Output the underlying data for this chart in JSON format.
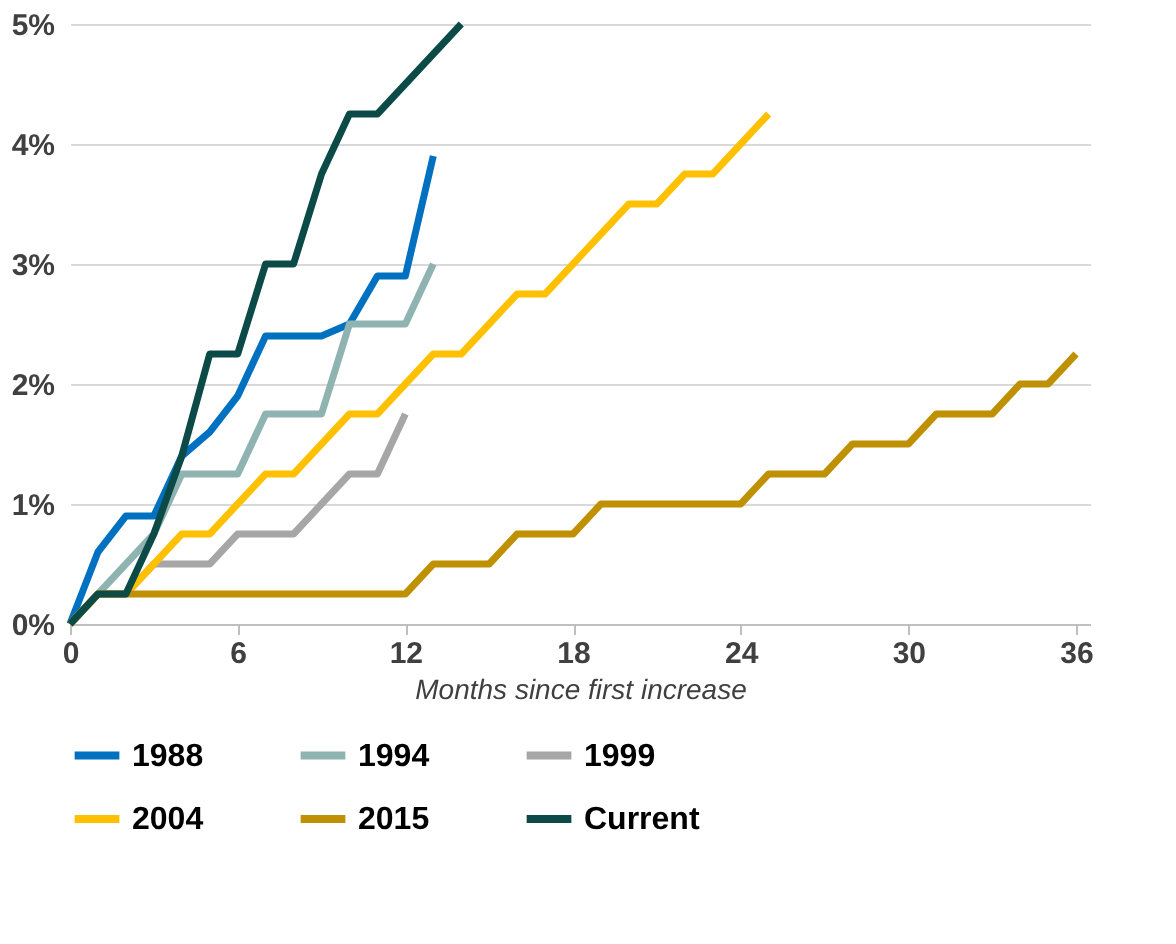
{
  "chart_data": {
    "type": "line",
    "xlabel": "Months since first increase",
    "xlim": [
      0,
      36.5
    ],
    "xticks": [
      0,
      6,
      12,
      18,
      24,
      30,
      36
    ],
    "ylim": [
      0,
      5
    ],
    "yticks": [
      {
        "value": 0,
        "label": "0%"
      },
      {
        "value": 1,
        "label": "1%"
      },
      {
        "value": 2,
        "label": "2%"
      },
      {
        "value": 3,
        "label": "3%"
      },
      {
        "value": 4,
        "label": "4%"
      },
      {
        "value": 5,
        "label": "5%"
      }
    ],
    "grid": "y",
    "legend": "bottom",
    "line_style": "solid",
    "marker": "none",
    "series": [
      {
        "name": "1988",
        "color": "#0070c0",
        "x": [
          0,
          1,
          2,
          3,
          4,
          5,
          6,
          7,
          8,
          9,
          10,
          11,
          12,
          13
        ],
        "values": [
          0,
          0.6,
          0.9,
          0.9,
          1.4,
          1.6,
          1.9,
          2.4,
          2.4,
          2.4,
          2.5,
          2.9,
          2.9,
          3.9
        ]
      },
      {
        "name": "1994",
        "color": "#8fb3b0",
        "x": [
          0,
          1,
          2,
          3,
          4,
          5,
          6,
          7,
          8,
          9,
          10,
          11,
          12,
          13
        ],
        "values": [
          0,
          0.25,
          0.5,
          0.75,
          1.25,
          1.25,
          1.25,
          1.75,
          1.75,
          1.75,
          2.5,
          2.5,
          2.5,
          3.0
        ]
      },
      {
        "name": "1999",
        "color": "#a6a6a6",
        "x": [
          0,
          1,
          2,
          3,
          4,
          5,
          6,
          7,
          8,
          9,
          10,
          11,
          12
        ],
        "values": [
          0,
          0.25,
          0.25,
          0.5,
          0.5,
          0.5,
          0.75,
          0.75,
          0.75,
          1.0,
          1.25,
          1.25,
          1.75
        ]
      },
      {
        "name": "2004",
        "color": "#ffc000",
        "x": [
          0,
          1,
          2,
          3,
          4,
          5,
          6,
          7,
          8,
          9,
          10,
          11,
          12,
          13,
          14,
          15,
          16,
          17,
          18,
          19,
          20,
          21,
          22,
          23,
          24,
          25
        ],
        "values": [
          0,
          0.25,
          0.25,
          0.5,
          0.75,
          0.75,
          1.0,
          1.25,
          1.25,
          1.5,
          1.75,
          1.75,
          2.0,
          2.25,
          2.25,
          2.5,
          2.75,
          2.75,
          3.0,
          3.25,
          3.5,
          3.5,
          3.75,
          3.75,
          4.0,
          4.25
        ]
      },
      {
        "name": "2015",
        "color": "#bf9000",
        "x": [
          0,
          1,
          2,
          3,
          4,
          5,
          6,
          7,
          8,
          9,
          10,
          11,
          12,
          13,
          14,
          15,
          16,
          17,
          18,
          19,
          20,
          21,
          22,
          23,
          24,
          25,
          26,
          27,
          28,
          29,
          30,
          31,
          32,
          33,
          34,
          35,
          36
        ],
        "values": [
          0,
          0.25,
          0.25,
          0.25,
          0.25,
          0.25,
          0.25,
          0.25,
          0.25,
          0.25,
          0.25,
          0.25,
          0.25,
          0.5,
          0.5,
          0.5,
          0.75,
          0.75,
          0.75,
          1.0,
          1.0,
          1.0,
          1.0,
          1.0,
          1.0,
          1.25,
          1.25,
          1.25,
          1.5,
          1.5,
          1.5,
          1.75,
          1.75,
          1.75,
          2.0,
          2.0,
          2.25
        ]
      },
      {
        "name": "Current",
        "color": "#0b4a47",
        "x": [
          0,
          1,
          2,
          3,
          4,
          5,
          6,
          7,
          8,
          9,
          10,
          11,
          12,
          13,
          14
        ],
        "values": [
          0,
          0.25,
          0.25,
          0.75,
          1.4,
          2.25,
          2.25,
          3.0,
          3.0,
          3.75,
          4.25,
          4.25,
          4.5,
          4.75,
          5.0
        ]
      }
    ]
  }
}
